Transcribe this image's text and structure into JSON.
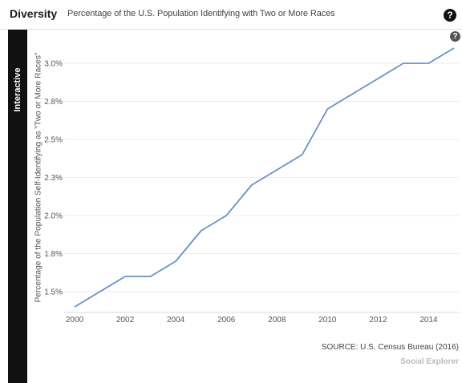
{
  "header": {
    "title": "Diversity",
    "subtitle": "Percentage of the U.S. Population Identifying with Two or More Races",
    "help_glyph": "?"
  },
  "sidebar": {
    "tab_label": "Interactive"
  },
  "footer": {
    "source": "SOURCE: U.S. Census Bureau (2016)",
    "brand": "Social Explorer"
  },
  "colors": {
    "line": "#6a90c6",
    "sidebar": "#111111"
  },
  "icons": {
    "help": "help-icon"
  },
  "chart_data": {
    "type": "line",
    "title": "Percentage of the U.S. Population Identifying with Two or More Races",
    "xlabel": "",
    "ylabel": "Percentage of the Population Self-Identifying as \"Two or More Races\"",
    "x": [
      2000,
      2001,
      2002,
      2003,
      2004,
      2005,
      2006,
      2007,
      2008,
      2009,
      2010,
      2011,
      2012,
      2013,
      2014,
      2015
    ],
    "series": [
      {
        "values": [
          1.4,
          1.5,
          1.6,
          1.6,
          1.7,
          1.9,
          2.0,
          2.2,
          2.3,
          2.4,
          2.7,
          2.8,
          2.9,
          3.0,
          3.0,
          3.1
        ]
      }
    ],
    "xticks": [
      2000,
      2002,
      2004,
      2006,
      2008,
      2010,
      2012,
      2014
    ],
    "xtick_labels": [
      "2000",
      "2002",
      "2004",
      "2006",
      "2008",
      "2010",
      "2012",
      "2014"
    ],
    "yticks": [
      1.5,
      1.75,
      2.0,
      2.25,
      2.5,
      2.75,
      3.0
    ],
    "ytick_labels": [
      "1.5%",
      "1.8%",
      "2.0%",
      "2.3%",
      "2.5%",
      "2.8%",
      "3.0%"
    ],
    "xlim": [
      2000,
      2015
    ],
    "ylim": [
      1.4,
      3.1
    ],
    "grid": true,
    "legend": "none"
  }
}
